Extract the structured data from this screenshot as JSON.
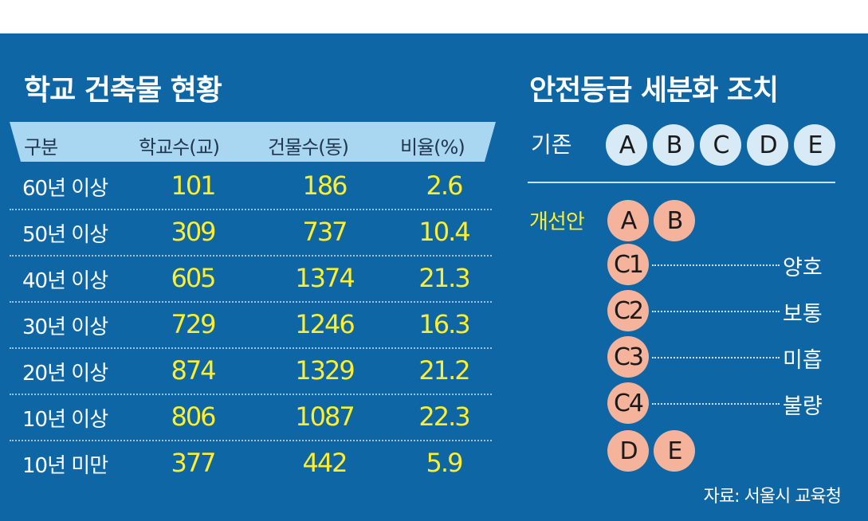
{
  "left_title": "학교 건축물 현황",
  "right_title": "안전등급 세분화 조치",
  "table": {
    "headers": [
      "구분",
      "학교수(교)",
      "건물수(동)",
      "비율(%)"
    ],
    "rows": [
      {
        "label": "60년 이상",
        "schools": "101",
        "buildings": "186",
        "ratio": "2.6"
      },
      {
        "label": "50년 이상",
        "schools": "309",
        "buildings": "737",
        "ratio": "10.4"
      },
      {
        "label": "40년 이상",
        "schools": "605",
        "buildings": "1374",
        "ratio": "21.3"
      },
      {
        "label": "30년 이상",
        "schools": "729",
        "buildings": "1246",
        "ratio": "16.3"
      },
      {
        "label": "20년 이상",
        "schools": "874",
        "buildings": "1329",
        "ratio": "21.2"
      },
      {
        "label": "10년 이상",
        "schools": "806",
        "buildings": "1087",
        "ratio": "22.3"
      },
      {
        "label": "10년 미만",
        "schools": "377",
        "buildings": "442",
        "ratio": "5.9"
      }
    ]
  },
  "grades": {
    "existing_label": "기존",
    "existing": [
      "A",
      "B",
      "C",
      "D",
      "E"
    ],
    "improved_label": "개선안",
    "improved_top": [
      "A",
      "B"
    ],
    "improved_mid": [
      {
        "grade": "C1",
        "desc": "양호"
      },
      {
        "grade": "C2",
        "desc": "보통"
      },
      {
        "grade": "C3",
        "desc": "미흡"
      },
      {
        "grade": "C4",
        "desc": "불량"
      }
    ],
    "improved_bottom": [
      "D",
      "E"
    ]
  },
  "source": "자료: 서울시 교육청",
  "colors": {
    "background": "#0e66a5",
    "header_bar": "#a9d7f1",
    "value_yellow": "#ffee2b",
    "circle_light": "#d8eaf6",
    "circle_orange": "#f6b39b"
  }
}
